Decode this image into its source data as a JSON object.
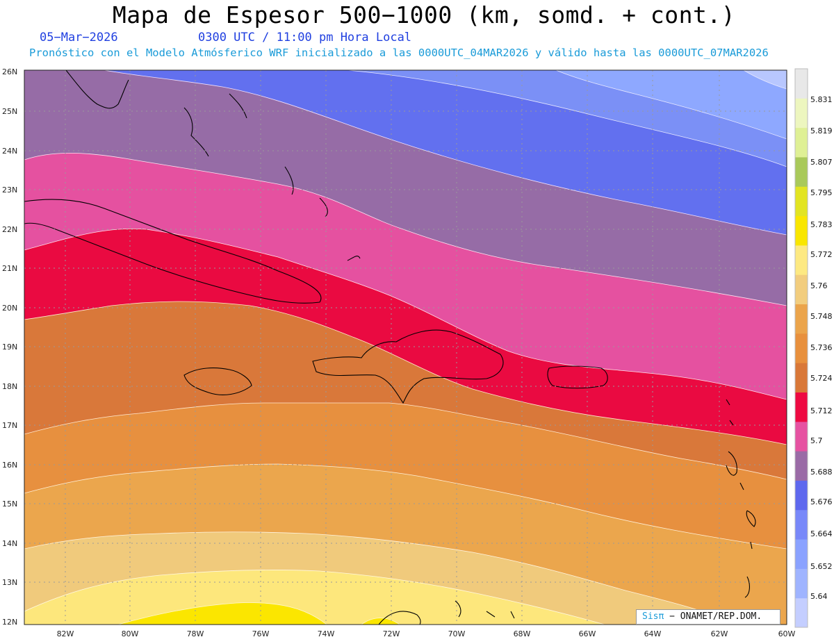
{
  "header": {
    "title": "Mapa de Espesor 500−1000 (km, somd. + cont.)",
    "date": "05−Mar−2026",
    "time": "0300 UTC / 11:00 pm Hora Local",
    "subtitle": "Pronóstico con el Modelo Atmósferico WRF inicializado a las 0000UTC_04MAR2026 y válido hasta las  0000UTC_07MAR2026"
  },
  "map": {
    "lat_labels": [
      "26N",
      "25N",
      "24N",
      "23N",
      "22N",
      "21N",
      "20N",
      "19N",
      "18N",
      "17N",
      "16N",
      "15N",
      "14N",
      "13N",
      "12N"
    ],
    "lon_labels": [
      "82W",
      "80W",
      "78W",
      "76W",
      "74W",
      "72W",
      "70W",
      "68W",
      "66W",
      "64W",
      "62W",
      "60W"
    ],
    "grid": true,
    "contour_fills": [
      {
        "level": "5.64",
        "color": "#b8c7ff"
      },
      {
        "level": "5.652",
        "color": "#8ea8ff"
      },
      {
        "level": "5.664",
        "color": "#7b90f6"
      },
      {
        "level": "5.676",
        "color": "#6270ef"
      },
      {
        "level": "5.688",
        "color": "#966ca6"
      },
      {
        "level": "5.7",
        "color": "#e551a0"
      },
      {
        "level": "5.712",
        "color": "#ea0a41"
      },
      {
        "level": "5.724",
        "color": "#d9783a"
      },
      {
        "level": "5.736",
        "color": "#e7903f"
      },
      {
        "level": "5.748",
        "color": "#eba64d"
      },
      {
        "level": "5.76",
        "color": "#f0ca7c"
      },
      {
        "level": "5.772",
        "color": "#fde77c"
      },
      {
        "level": "5.783",
        "color": "#fbe600"
      }
    ]
  },
  "colorbar": {
    "labels": [
      "5.64",
      "5.652",
      "5.664",
      "5.676",
      "5.688",
      "5.7",
      "5.712",
      "5.724",
      "5.736",
      "5.748",
      "5.76",
      "5.772",
      "5.783",
      "5.795",
      "5.807",
      "5.819",
      "5.831"
    ],
    "colors": [
      "#c4ceff",
      "#9fb4ff",
      "#8aa2ff",
      "#7888f9",
      "#5e68ee",
      "#9a6ba6",
      "#e652a1",
      "#ee0a42",
      "#d97838",
      "#e8903d",
      "#eba44b",
      "#f2cd7e",
      "#fde982",
      "#f9e600",
      "#e2e422",
      "#a9c95a",
      "#dff095",
      "#edf6bf",
      "#e8e8e8"
    ]
  },
  "credit": {
    "brand": "Sisπ",
    "org": "− ONAMET/REP.DOM."
  }
}
